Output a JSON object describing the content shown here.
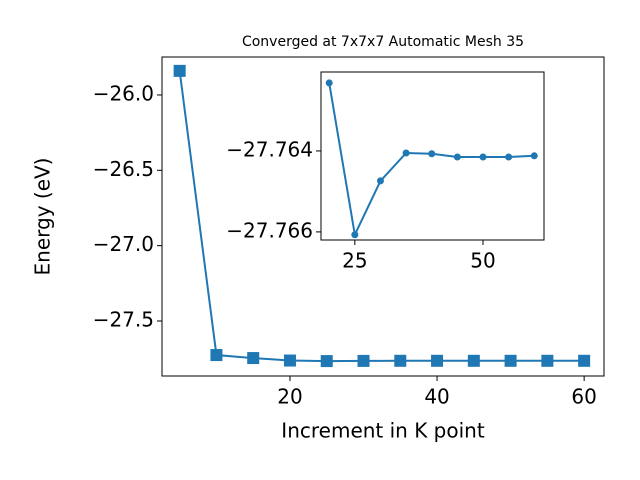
{
  "chart_data": [
    {
      "type": "line",
      "title": "Converged at 7x7x7 Automatic Mesh 35",
      "x_label": "Increment in K point",
      "y_label": "Energy (eV)",
      "x": [
        5,
        10,
        15,
        20,
        25,
        30,
        35,
        40,
        45,
        50,
        55,
        60
      ],
      "series": [
        {
          "name": "Energy",
          "color": "#1f77b4",
          "marker": "square",
          "values": [
            -25.84,
            -27.726,
            -27.746,
            -27.76232,
            -27.76607,
            -27.76474,
            -27.76405,
            -27.76407,
            -27.76415,
            -27.76415,
            -27.76415,
            -27.76412
          ]
        }
      ],
      "xlim": [
        2.6,
        62.7
      ],
      "ylim": [
        -27.865,
        -25.748
      ],
      "xticks": [
        20,
        40,
        60
      ],
      "yticks": [
        {
          "value": -26.0,
          "label": "−26.0"
        },
        {
          "value": -26.5,
          "label": "−26.5"
        },
        {
          "value": -27.0,
          "label": "−27.0"
        },
        {
          "value": -27.5,
          "label": "−27.5"
        }
      ]
    },
    {
      "type": "line",
      "x": [
        20,
        25,
        30,
        35,
        40,
        45,
        50,
        55,
        60
      ],
      "series": [
        {
          "name": "Energy",
          "color": "#1f77b4",
          "marker": "circle",
          "values": [
            -27.76232,
            -27.76607,
            -27.76474,
            -27.76405,
            -27.76407,
            -27.76415,
            -27.76415,
            -27.76415,
            -27.76412
          ]
        }
      ],
      "xlim": [
        18.4,
        61.9
      ],
      "ylim": [
        -27.7662,
        -27.76205
      ],
      "xticks": [
        25,
        50
      ],
      "yticks": [
        {
          "value": -27.766,
          "label": "−27.766"
        },
        {
          "value": -27.764,
          "label": "−27.764"
        }
      ]
    }
  ]
}
